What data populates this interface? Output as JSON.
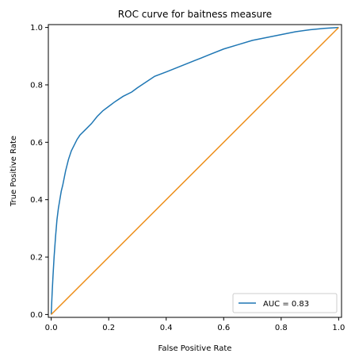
{
  "chart_data": {
    "type": "line",
    "title": "ROC curve for baitness measure",
    "xlabel": "False Positive Rate",
    "ylabel": "True Positive Rate",
    "xlim": [
      -0.01,
      1.01
    ],
    "ylim": [
      -0.01,
      1.01
    ],
    "xticks": [
      0.0,
      0.2,
      0.4,
      0.6,
      0.8,
      1.0
    ],
    "xtick_labels": [
      "0.0",
      "0.2",
      "0.4",
      "0.6",
      "0.8",
      "1.0"
    ],
    "yticks": [
      0.0,
      0.2,
      0.4,
      0.6,
      0.8,
      1.0
    ],
    "ytick_labels": [
      "0.0",
      "0.2",
      "0.4",
      "0.6",
      "0.8",
      "1.0"
    ],
    "grid": false,
    "legend_position": "lower-right",
    "series": [
      {
        "name": "AUC = 0.83",
        "color": "#1f77b4",
        "x": [
          0.0,
          0.003,
          0.006,
          0.01,
          0.015,
          0.02,
          0.025,
          0.03,
          0.035,
          0.04,
          0.05,
          0.06,
          0.07,
          0.08,
          0.09,
          0.1,
          0.12,
          0.14,
          0.16,
          0.18,
          0.2,
          0.22,
          0.25,
          0.28,
          0.3,
          0.33,
          0.36,
          0.4,
          0.45,
          0.5,
          0.55,
          0.6,
          0.65,
          0.7,
          0.75,
          0.8,
          0.85,
          0.9,
          0.95,
          1.0
        ],
        "y": [
          0.0,
          0.07,
          0.13,
          0.2,
          0.27,
          0.33,
          0.37,
          0.4,
          0.43,
          0.45,
          0.5,
          0.54,
          0.57,
          0.59,
          0.61,
          0.625,
          0.645,
          0.665,
          0.69,
          0.71,
          0.725,
          0.74,
          0.76,
          0.775,
          0.79,
          0.81,
          0.83,
          0.845,
          0.865,
          0.885,
          0.905,
          0.925,
          0.94,
          0.955,
          0.965,
          0.975,
          0.985,
          0.992,
          0.997,
          1.0
        ]
      },
      {
        "name": "",
        "color": "#ed8f1b",
        "x": [
          0.0,
          1.0
        ],
        "y": [
          0.0,
          1.0
        ]
      }
    ]
  }
}
